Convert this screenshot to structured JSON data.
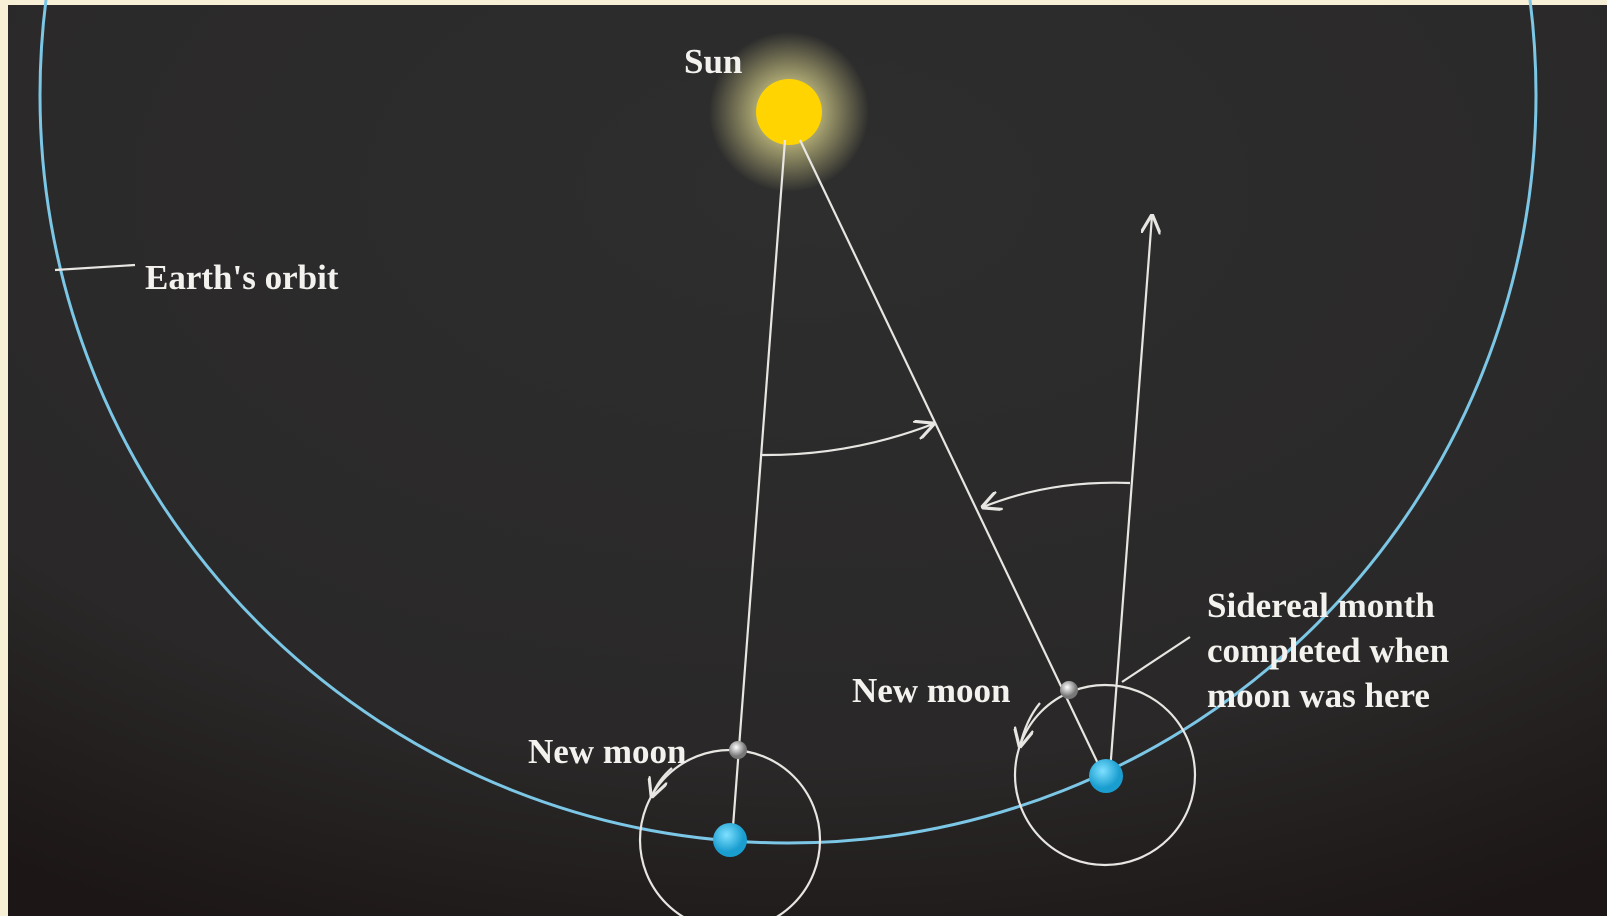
{
  "labels": {
    "sun": "Sun",
    "earth_orbit": "Earth's orbit",
    "new_moon_1": "New moon",
    "new_moon_2": "New moon",
    "sidereal": [
      "Sidereal month",
      "completed when",
      "moon was here"
    ]
  }
}
